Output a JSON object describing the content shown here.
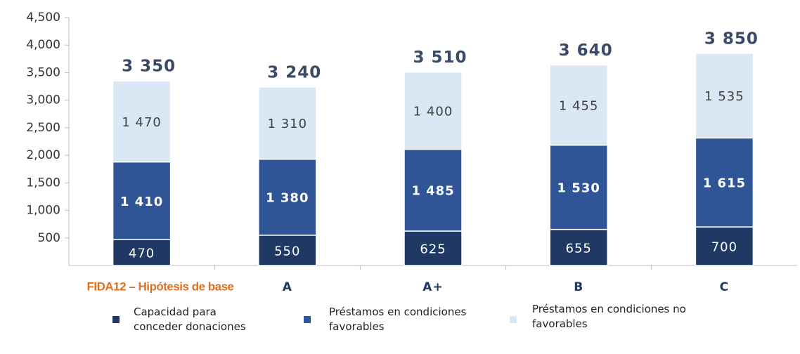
{
  "chart_data": {
    "type": "stacked_bar",
    "categories": [
      "FIDA12 – Hipótesis de base",
      "A",
      "A+",
      "B",
      "C"
    ],
    "category_label_colors": [
      "#e07020",
      "#1f3864",
      "#1f3864",
      "#1f3864",
      "#1f3864"
    ],
    "series": [
      {
        "name": "Capacidad para conceder donaciones",
        "color": "#1f3864",
        "values": [
          470,
          550,
          625,
          655,
          700
        ],
        "value_labels": [
          "470",
          "550",
          "625",
          "655",
          "700"
        ]
      },
      {
        "name": "Préstamos en condiciones favorables",
        "color": "#2f5597",
        "values": [
          1410,
          1380,
          1485,
          1530,
          1615
        ],
        "value_labels": [
          "1 410",
          "1 380",
          "1 485",
          "1 530",
          "1 615"
        ]
      },
      {
        "name": "Préstamos en condiciones no favorables",
        "color": "#dae8f5",
        "values": [
          1470,
          1310,
          1400,
          1455,
          1535
        ],
        "value_labels": [
          "1 470",
          "1 310",
          "1 400",
          "1 455",
          "1 535"
        ]
      }
    ],
    "totals": [
      3350,
      3240,
      3510,
      3640,
      3850
    ],
    "total_labels": [
      "3 350",
      "3 240",
      "3 510",
      "3 640",
      "3 850"
    ],
    "ylim": [
      0,
      4500
    ],
    "yticks": [
      500,
      {
        "value": 1000,
        "label": "1,000"
      },
      {
        "value": 1500,
        "label": "1,500"
      },
      {
        "value": 2000,
        "label": "2,000"
      },
      {
        "value": 2500,
        "label": "2,500"
      },
      {
        "value": 3000,
        "label": "3,000"
      },
      {
        "value": 3500,
        "label": "3,500"
      },
      {
        "value": 4000,
        "label": "4,000"
      },
      {
        "value": 4500,
        "label": "4,500"
      }
    ],
    "grid": false,
    "legend": "bottom"
  }
}
